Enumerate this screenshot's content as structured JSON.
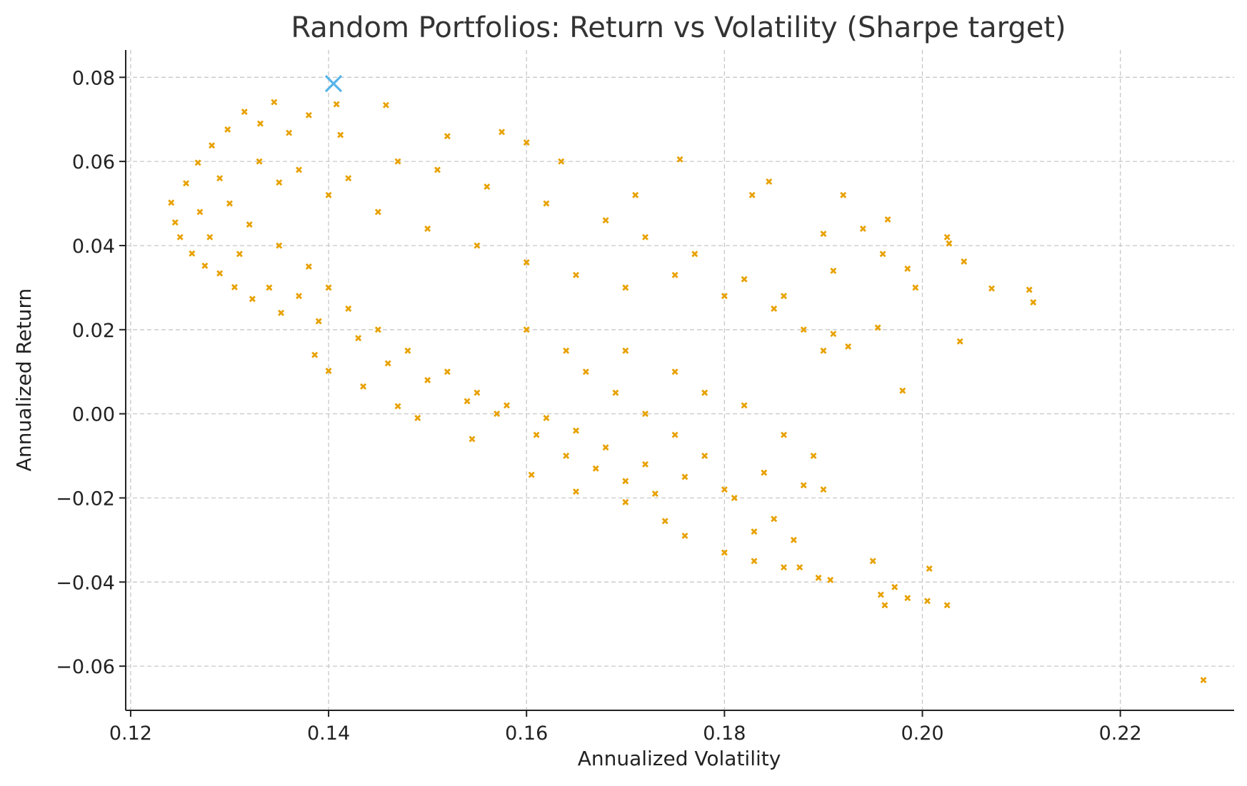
{
  "chart_data": {
    "type": "scatter",
    "title": "Random Portfolios: Return vs Volatility (Sharpe target)",
    "xlabel": "Annualized Volatility",
    "ylabel": "Annualized Return",
    "xlim": [
      0.1195,
      0.2315
    ],
    "ylim": [
      -0.0705,
      0.0865
    ],
    "x_ticks": [
      "0.12",
      "0.14",
      "0.16",
      "0.18",
      "0.20",
      "0.22"
    ],
    "x_tick_values": [
      0.12,
      0.14,
      0.16,
      0.18,
      0.2,
      0.22
    ],
    "y_ticks": [
      "0.08",
      "0.06",
      "0.04",
      "0.02",
      "0.00",
      "−0.02",
      "−0.04",
      "−0.06"
    ],
    "y_tick_values": [
      0.08,
      0.06,
      0.04,
      0.02,
      0.0,
      -0.02,
      -0.04,
      -0.06
    ],
    "grid": true,
    "colors": {
      "portfolios": "#e8a100",
      "highlight": "#56b4e9"
    },
    "series": [
      {
        "marker": "x-small",
        "color": "#e8a100",
        "points": [
          [
            0.1241,
            0.0502
          ],
          [
            0.1245,
            0.0455
          ],
          [
            0.125,
            0.042
          ],
          [
            0.1256,
            0.0548
          ],
          [
            0.1262,
            0.0381
          ],
          [
            0.1268,
            0.0597
          ],
          [
            0.1275,
            0.0352
          ],
          [
            0.1282,
            0.0638
          ],
          [
            0.129,
            0.0334
          ],
          [
            0.1298,
            0.0676
          ],
          [
            0.1305,
            0.0301
          ],
          [
            0.1315,
            0.0718
          ],
          [
            0.1323,
            0.0273
          ],
          [
            0.1331,
            0.069
          ],
          [
            0.1345,
            0.0741
          ],
          [
            0.1352,
            0.024
          ],
          [
            0.136,
            0.0668
          ],
          [
            0.138,
            0.071
          ],
          [
            0.1386,
            0.014
          ],
          [
            0.14,
            0.0102
          ],
          [
            0.1408,
            0.0736
          ],
          [
            0.1412,
            0.0663
          ],
          [
            0.1435,
            0.0065
          ],
          [
            0.1458,
            0.0734
          ],
          [
            0.147,
            0.0018
          ],
          [
            0.149,
            -0.001
          ],
          [
            0.152,
            0.066
          ],
          [
            0.1545,
            -0.006
          ],
          [
            0.1575,
            0.067
          ],
          [
            0.16,
            0.0645
          ],
          [
            0.1605,
            -0.0145
          ],
          [
            0.1635,
            0.06
          ],
          [
            0.165,
            -0.0185
          ],
          [
            0.17,
            -0.021
          ],
          [
            0.171,
            0.052
          ],
          [
            0.174,
            -0.0255
          ],
          [
            0.1755,
            0.0605
          ],
          [
            0.176,
            -0.029
          ],
          [
            0.18,
            -0.033
          ],
          [
            0.183,
            -0.035
          ],
          [
            0.1828,
            0.052
          ],
          [
            0.1845,
            0.0552
          ],
          [
            0.186,
            -0.0365
          ],
          [
            0.1876,
            -0.0365
          ],
          [
            0.1895,
            -0.039
          ],
          [
            0.1907,
            -0.0395
          ],
          [
            0.19,
            0.0428
          ],
          [
            0.192,
            0.052
          ],
          [
            0.195,
            -0.035
          ],
          [
            0.194,
            0.044
          ],
          [
            0.1958,
            -0.043
          ],
          [
            0.1962,
            -0.0455
          ],
          [
            0.1972,
            -0.0412
          ],
          [
            0.1985,
            -0.0438
          ],
          [
            0.1965,
            0.0462
          ],
          [
            0.198,
            0.0055
          ],
          [
            0.1993,
            0.03
          ],
          [
            0.2007,
            -0.0368
          ],
          [
            0.2005,
            -0.0445
          ],
          [
            0.2025,
            -0.0455
          ],
          [
            0.2025,
            0.042
          ],
          [
            0.2027,
            0.0405
          ],
          [
            0.2038,
            0.0172
          ],
          [
            0.2042,
            0.0362
          ],
          [
            0.207,
            0.0298
          ],
          [
            0.2108,
            0.0295
          ],
          [
            0.2112,
            0.0265
          ],
          [
            0.2284,
            -0.0633
          ],
          [
            0.13,
            0.05
          ],
          [
            0.132,
            0.045
          ],
          [
            0.135,
            0.04
          ],
          [
            0.138,
            0.035
          ],
          [
            0.14,
            0.03
          ],
          [
            0.142,
            0.025
          ],
          [
            0.145,
            0.02
          ],
          [
            0.148,
            0.015
          ],
          [
            0.152,
            0.01
          ],
          [
            0.155,
            0.005
          ],
          [
            0.158,
            0.002
          ],
          [
            0.162,
            -0.001
          ],
          [
            0.165,
            -0.004
          ],
          [
            0.168,
            -0.008
          ],
          [
            0.172,
            -0.012
          ],
          [
            0.176,
            -0.015
          ],
          [
            0.18,
            -0.018
          ],
          [
            0.185,
            -0.025
          ],
          [
            0.188,
            -0.017
          ],
          [
            0.19,
            -0.018
          ],
          [
            0.135,
            0.055
          ],
          [
            0.14,
            0.052
          ],
          [
            0.145,
            0.048
          ],
          [
            0.15,
            0.044
          ],
          [
            0.155,
            0.04
          ],
          [
            0.16,
            0.036
          ],
          [
            0.165,
            0.033
          ],
          [
            0.17,
            0.03
          ],
          [
            0.175,
            0.033
          ],
          [
            0.18,
            0.028
          ],
          [
            0.185,
            0.025
          ],
          [
            0.188,
            0.02
          ],
          [
            0.191,
            0.019
          ],
          [
            0.19,
            0.015
          ],
          [
            0.196,
            0.038
          ],
          [
            0.1985,
            0.0345
          ],
          [
            0.1955,
            0.0205
          ],
          [
            0.1925,
            0.016
          ],
          [
            0.17,
            0.015
          ],
          [
            0.175,
            0.01
          ],
          [
            0.178,
            0.005
          ],
          [
            0.182,
            0.002
          ],
          [
            0.186,
            -0.005
          ],
          [
            0.189,
            -0.01
          ],
          [
            0.184,
            -0.014
          ],
          [
            0.128,
            0.042
          ],
          [
            0.131,
            0.038
          ],
          [
            0.134,
            0.03
          ],
          [
            0.137,
            0.028
          ],
          [
            0.139,
            0.022
          ],
          [
            0.143,
            0.018
          ],
          [
            0.146,
            0.012
          ],
          [
            0.15,
            0.008
          ],
          [
            0.154,
            0.003
          ],
          [
            0.157,
            0.0
          ],
          [
            0.161,
            -0.005
          ],
          [
            0.164,
            -0.01
          ],
          [
            0.167,
            -0.013
          ],
          [
            0.17,
            -0.016
          ],
          [
            0.173,
            -0.019
          ],
          [
            0.127,
            0.048
          ],
          [
            0.129,
            0.056
          ],
          [
            0.133,
            0.06
          ],
          [
            0.137,
            0.058
          ],
          [
            0.142,
            0.056
          ],
          [
            0.147,
            0.06
          ],
          [
            0.151,
            0.058
          ],
          [
            0.156,
            0.054
          ],
          [
            0.162,
            0.05
          ],
          [
            0.168,
            0.046
          ],
          [
            0.172,
            0.042
          ],
          [
            0.177,
            0.038
          ],
          [
            0.182,
            0.032
          ],
          [
            0.186,
            0.028
          ],
          [
            0.191,
            0.034
          ],
          [
            0.16,
            0.02
          ],
          [
            0.164,
            0.015
          ],
          [
            0.166,
            0.01
          ],
          [
            0.169,
            0.005
          ],
          [
            0.172,
            0.0
          ],
          [
            0.175,
            -0.005
          ],
          [
            0.178,
            -0.01
          ],
          [
            0.181,
            -0.02
          ],
          [
            0.183,
            -0.028
          ],
          [
            0.187,
            -0.03
          ]
        ]
      },
      {
        "marker": "x-large",
        "color": "#56b4e9",
        "points": [
          [
            0.1405,
            0.0785
          ]
        ]
      }
    ]
  }
}
